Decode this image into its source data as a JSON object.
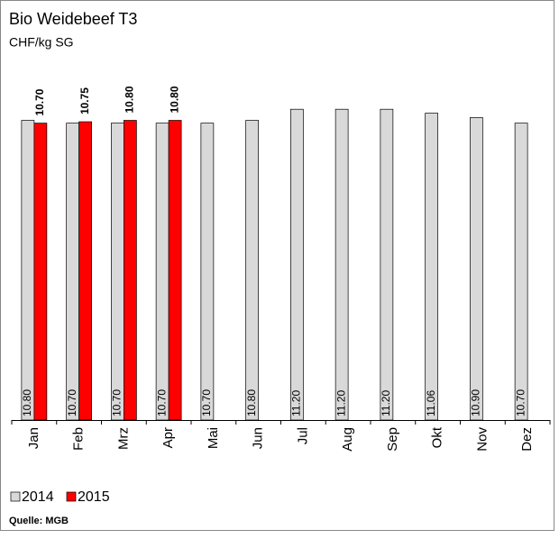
{
  "chart_data": {
    "type": "bar",
    "title": "Bio Weidebeef T3",
    "subtitle": "CHF/kg SG",
    "categories": [
      "Jan",
      "Feb",
      "Mrz",
      "Apr",
      "Mai",
      "Jun",
      "Jul",
      "Aug",
      "Sep",
      "Okt",
      "Nov",
      "Dez"
    ],
    "series": [
      {
        "name": "2014",
        "color": "#d9d9d9",
        "values": [
          10.8,
          10.7,
          10.7,
          10.7,
          10.7,
          10.8,
          11.2,
          11.2,
          11.2,
          11.06,
          10.9,
          10.7
        ],
        "value_labels": [
          "10.80",
          "10.70",
          "10.70",
          "10.70",
          "10.70",
          "10.80",
          "11.20",
          "11.20",
          "11.20",
          "11.06",
          "10.90",
          "10.70"
        ]
      },
      {
        "name": "2015",
        "color": "#ff0000",
        "values": [
          10.7,
          10.75,
          10.8,
          10.8,
          null,
          null,
          null,
          null,
          null,
          null,
          null,
          null
        ],
        "value_labels": [
          "10.70",
          "10.75",
          "10.80",
          "10.80",
          null,
          null,
          null,
          null,
          null,
          null,
          null,
          null
        ]
      }
    ],
    "ylim": [
      0,
      14
    ],
    "source": "Quelle: MGB"
  }
}
